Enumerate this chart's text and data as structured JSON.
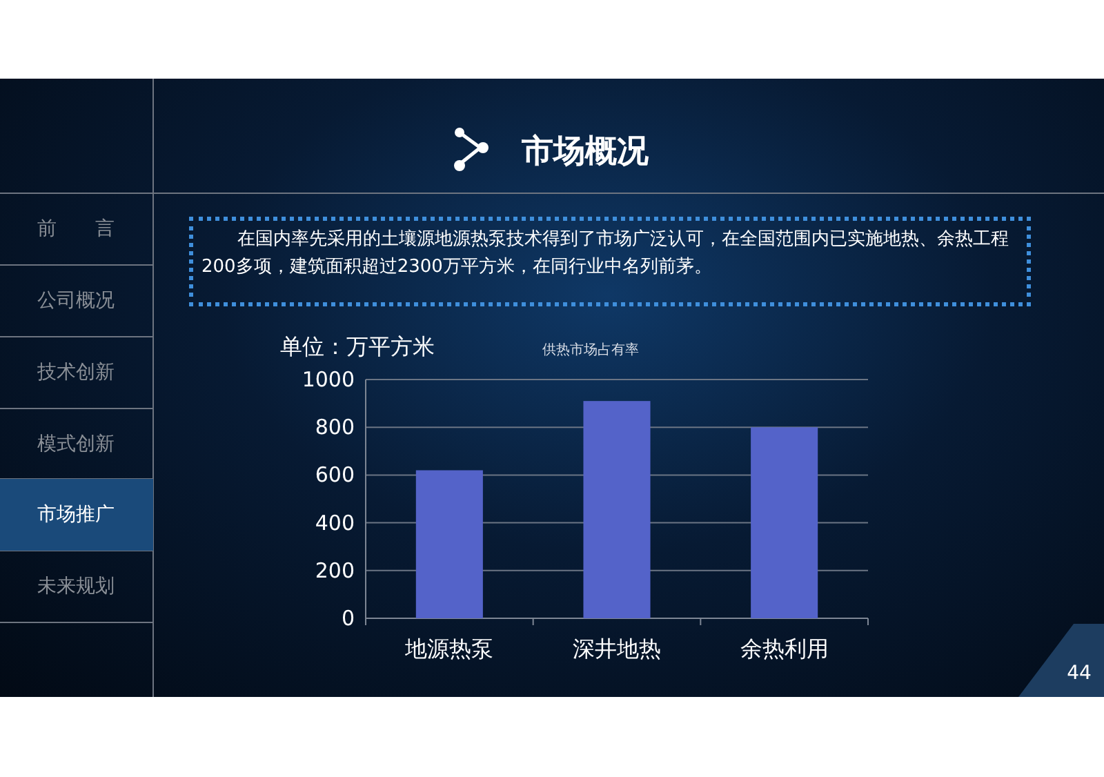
{
  "chart_data": {
    "type": "bar",
    "title": "供热市场占有率",
    "ylabel": "单位：万平方米",
    "categories": [
      "地源热泵",
      "深井地热",
      "余热利用"
    ],
    "values": [
      620,
      910,
      800
    ],
    "color": "#5463c9",
    "ylim": [
      0,
      1000
    ],
    "yticks": [
      0,
      200,
      400,
      600,
      800,
      1000
    ],
    "grid": "y",
    "annotations": [
      "市场概况",
      "在国内率先采用的土壤源地源热泵技术得到了市场广泛认可，在全国范围内已实施地热、余热工程200多项，建筑面积超过2300万平方米，在同行业中名列前茅。",
      "前　　言",
      "公司概况",
      "技术创新",
      "模式创新",
      "市场推广",
      "未来规划",
      "44"
    ]
  }
}
